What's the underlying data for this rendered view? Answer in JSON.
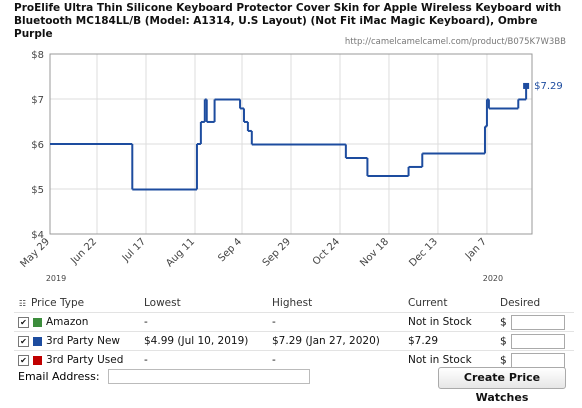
{
  "chart_data": {
    "type": "step",
    "title": "ProElife Ultra Thin Silicone Keyboard Protector Cover Skin for Apple Wireless Keyboard with Bluetooth MC184LL/B (Model: A1314, U.S Layout) (Not Fit iMac Magic Keyboard), Ombre Purple",
    "source": "http://camelcamelcamel.com/product/B075K7W3BB",
    "series": [
      {
        "name": "3rd Party New",
        "color": "#1d4c9f",
        "x": [
          "2019-05-29",
          "2019-07-10",
          "2019-08-12",
          "2019-08-14",
          "2019-08-16",
          "2019-08-17",
          "2019-08-21",
          "2019-09-03",
          "2019-09-05",
          "2019-09-07",
          "2019-09-09",
          "2019-10-27",
          "2019-11-07",
          "2019-11-28",
          "2019-12-05",
          "2020-01-06",
          "2020-01-07",
          "2020-01-08",
          "2020-01-23",
          "2020-01-27"
        ],
        "values": [
          6.0,
          4.99,
          6.0,
          6.49,
          6.99,
          6.49,
          6.99,
          6.79,
          6.49,
          6.29,
          5.99,
          5.69,
          5.29,
          5.49,
          5.79,
          6.39,
          6.99,
          6.79,
          6.99,
          7.29
        ]
      }
    ],
    "last_value_label": "$7.29",
    "xlim": [
      "2019-05-29",
      "2020-01-30"
    ],
    "xticks": [
      {
        "value": "2019-05-29",
        "label": "May 29"
      },
      {
        "value": "2019-06-22",
        "label": "Jun 22"
      },
      {
        "value": "2019-07-17",
        "label": "Jul 17"
      },
      {
        "value": "2019-08-11",
        "label": "Aug 11"
      },
      {
        "value": "2019-09-04",
        "label": "Sep 4"
      },
      {
        "value": "2019-09-29",
        "label": "Sep 29"
      },
      {
        "value": "2019-10-24",
        "label": "Oct 24"
      },
      {
        "value": "2019-11-18",
        "label": "Nov 18"
      },
      {
        "value": "2019-12-13",
        "label": "Dec 13"
      },
      {
        "value": "2020-01-07",
        "label": "Jan 7"
      }
    ],
    "year_labels": [
      {
        "value": "2019-05-29",
        "label": "2019"
      },
      {
        "value": "2020-01-07",
        "label": "2020"
      }
    ],
    "ylim": [
      4,
      8
    ],
    "yticks": [
      {
        "value": 4,
        "label": "$4"
      },
      {
        "value": 5,
        "label": "$5"
      },
      {
        "value": 6,
        "label": "$6"
      },
      {
        "value": 7,
        "label": "$7"
      },
      {
        "value": 8,
        "label": "$8"
      }
    ],
    "grid": true
  },
  "price_table": {
    "headers": [
      "Price Type",
      "Lowest",
      "Highest",
      "Current",
      "Desired"
    ],
    "rows": [
      {
        "name": "Amazon",
        "color": "#3c8d3c",
        "lowest": "-",
        "highest": "-",
        "current": "Not in Stock",
        "desired": "$"
      },
      {
        "name": "3rd Party New",
        "color": "#1d4c9f",
        "lowest": "$4.99 (Jul 10, 2019)",
        "highest": "$7.29 (Jan 27, 2020)",
        "current": "$7.29",
        "desired": "$"
      },
      {
        "name": "3rd Party Used",
        "color": "#c00000",
        "lowest": "-",
        "highest": "-",
        "current": "Not in Stock",
        "desired": "$"
      }
    ]
  },
  "form": {
    "email_label": "Email Address:",
    "button": "Create Price Watches"
  }
}
